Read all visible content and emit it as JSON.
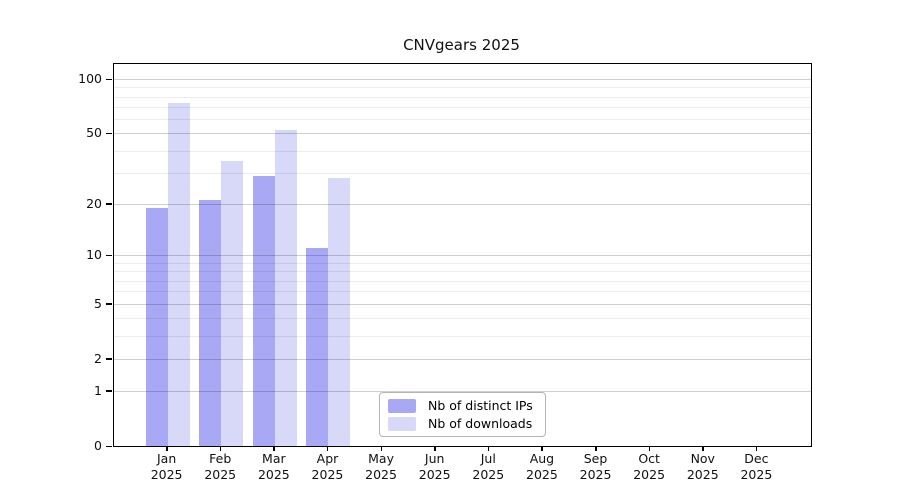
{
  "chart_data": {
    "type": "bar",
    "title": "CNVgears 2025",
    "categories": [
      "Jan",
      "Feb",
      "Mar",
      "Apr",
      "May",
      "Jun",
      "Jul",
      "Aug",
      "Sep",
      "Oct",
      "Nov",
      "Dec"
    ],
    "category_year": "2025",
    "series": [
      {
        "name": "Nb of distinct IPs",
        "color": "#a8a8f4",
        "values": [
          19,
          21,
          29,
          11,
          0,
          0,
          0,
          0,
          0,
          0,
          0,
          0
        ]
      },
      {
        "name": "Nb of downloads",
        "color": "#d8d8f8",
        "values": [
          74,
          35,
          52,
          28,
          0,
          0,
          0,
          0,
          0,
          0,
          0,
          0
        ]
      }
    ],
    "yscale": "log1p",
    "yticks": [
      0,
      1,
      2,
      5,
      10,
      20,
      50,
      100
    ],
    "minor_yticks": [
      3,
      4,
      6,
      7,
      8,
      9,
      30,
      40,
      60,
      70,
      80,
      90
    ],
    "ylim": [
      0,
      121
    ],
    "xlabel": "",
    "ylabel": "",
    "grid": "horizontal",
    "legend_position": "bottom-center"
  }
}
